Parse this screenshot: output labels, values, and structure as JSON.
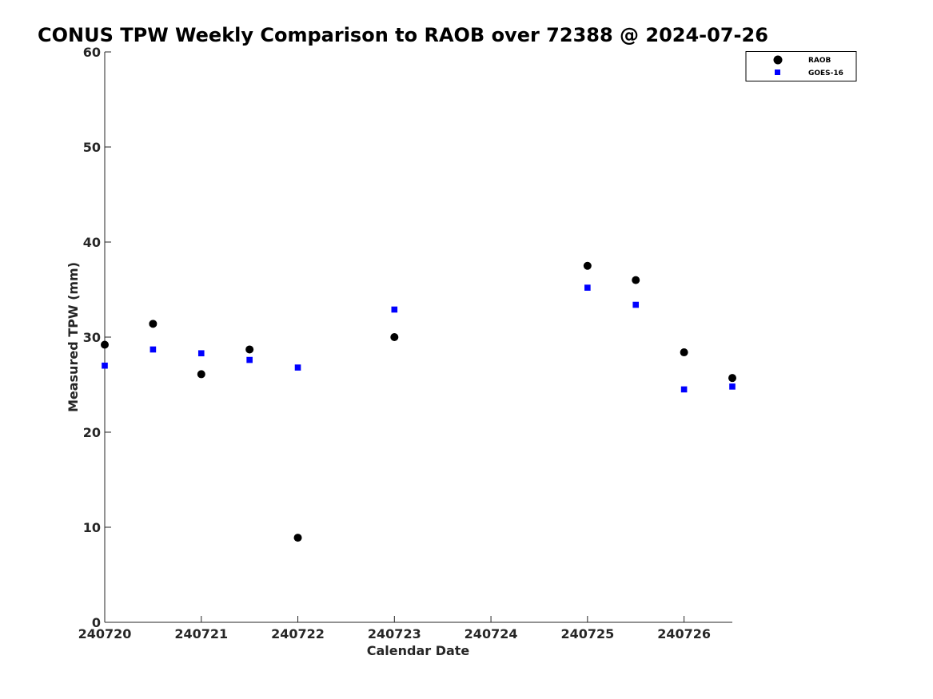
{
  "chart_data": {
    "type": "scatter",
    "title": "CONUS TPW Weekly Comparison to RAOB over 72388 @ 2024-07-26",
    "xlabel": "Calendar Date",
    "ylabel": "Measured TPW (mm)",
    "xlim": [
      240720,
      240726.5
    ],
    "ylim": [
      0,
      60
    ],
    "x_ticks": [
      240720,
      240721,
      240722,
      240723,
      240724,
      240725,
      240726
    ],
    "x_tick_labels": [
      "240720",
      "240721",
      "240722",
      "240723",
      "240724",
      "240725",
      "240726"
    ],
    "y_ticks": [
      0,
      10,
      20,
      30,
      40,
      50,
      60
    ],
    "y_tick_labels": [
      "0",
      "10",
      "20",
      "30",
      "40",
      "50",
      "60"
    ],
    "grid": false,
    "legend_position": "top-right",
    "series": [
      {
        "name": "RAOB",
        "marker": "circle",
        "color": "#000000",
        "x": [
          240720,
          240720.5,
          240721,
          240721.5,
          240722,
          240723,
          240725,
          240725.5,
          240726,
          240726.5
        ],
        "y": [
          29.2,
          31.4,
          26.1,
          28.7,
          8.9,
          30.0,
          37.5,
          36.0,
          28.4,
          25.7
        ]
      },
      {
        "name": "GOES-16",
        "marker": "square",
        "color": "#0000ff",
        "x": [
          240720,
          240720.5,
          240721,
          240721.5,
          240722,
          240723,
          240725,
          240725.5,
          240726,
          240726.5
        ],
        "y": [
          27.0,
          28.7,
          28.3,
          27.6,
          26.8,
          32.9,
          35.2,
          33.4,
          24.5,
          24.8
        ]
      }
    ]
  }
}
